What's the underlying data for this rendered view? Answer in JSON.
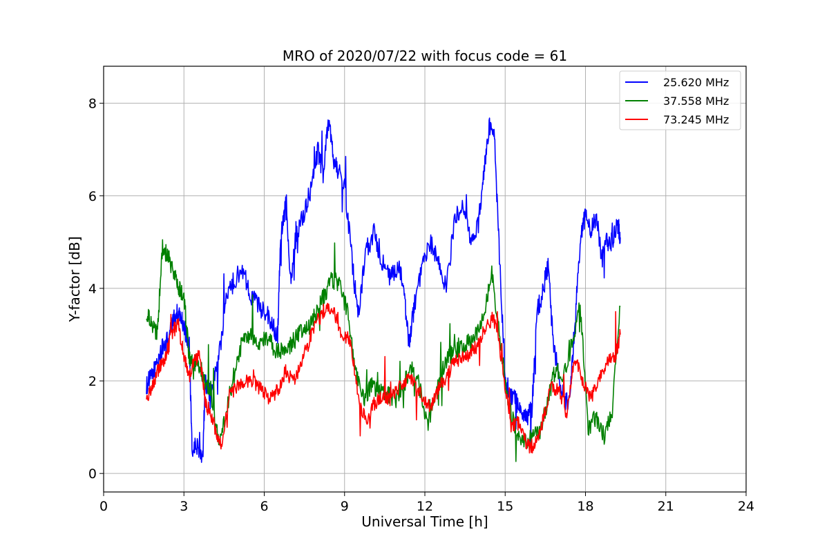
{
  "chart_data": {
    "type": "line",
    "title": "MRO of 2020/07/22 with focus code = 61",
    "xlabel": "Universal Time [h]",
    "ylabel": "Y-factor [dB]",
    "xlim": [
      0,
      24
    ],
    "ylim": [
      -0.4,
      8.8
    ],
    "xticks": [
      0,
      3,
      6,
      9,
      12,
      15,
      18,
      21,
      24
    ],
    "xtick_labels": [
      "0",
      "3",
      "6",
      "9",
      "12",
      "15",
      "18",
      "21",
      "24"
    ],
    "yticks": [
      0,
      2,
      4,
      6,
      8
    ],
    "ytick_labels": [
      "0",
      "2",
      "4",
      "6",
      "8"
    ],
    "grid": true,
    "legend_position": "top-right",
    "series": [
      {
        "name": "25.620 MHz",
        "color": "#0000ff",
        "x": [
          1.6,
          1.8,
          2.0,
          2.2,
          2.4,
          2.6,
          2.8,
          3.0,
          3.2,
          3.3,
          3.5,
          3.7,
          3.8,
          4.0,
          4.3,
          4.6,
          4.9,
          5.2,
          5.5,
          5.8,
          6.1,
          6.3,
          6.5,
          6.6,
          6.8,
          7.0,
          7.2,
          7.5,
          7.8,
          8.0,
          8.2,
          8.4,
          8.6,
          8.8,
          9.0,
          9.3,
          9.5,
          9.8,
          10.1,
          10.4,
          10.7,
          11.0,
          11.2,
          11.4,
          11.6,
          11.9,
          12.2,
          12.5,
          12.8,
          13.1,
          13.4,
          13.7,
          14.0,
          14.2,
          14.4,
          14.6,
          14.8,
          15.0,
          15.2,
          15.4,
          15.6,
          15.8,
          16.0,
          16.2,
          16.4,
          16.6,
          16.8,
          17.0,
          17.2,
          17.4,
          17.6,
          17.8,
          18.0,
          18.2,
          18.4,
          18.6,
          18.8,
          19.0,
          19.2,
          19.3
        ],
        "values": [
          1.9,
          2.1,
          2.4,
          2.7,
          2.9,
          3.3,
          3.5,
          3.2,
          2.8,
          0.5,
          0.6,
          0.4,
          2.0,
          1.7,
          2.5,
          3.8,
          4.2,
          4.4,
          3.9,
          3.6,
          3.5,
          3.2,
          3.0,
          5.0,
          5.8,
          4.2,
          5.2,
          5.6,
          6.3,
          7.0,
          6.5,
          7.6,
          6.8,
          6.5,
          6.2,
          4.5,
          3.4,
          4.8,
          5.2,
          4.6,
          4.2,
          4.5,
          4.0,
          2.8,
          3.6,
          4.4,
          5.0,
          4.6,
          4.0,
          5.4,
          5.9,
          5.0,
          5.4,
          6.5,
          7.5,
          7.2,
          4.5,
          2.0,
          1.7,
          1.6,
          1.3,
          1.2,
          1.4,
          3.5,
          3.9,
          4.5,
          2.8,
          2.1,
          1.6,
          1.5,
          3.2,
          5.0,
          5.6,
          5.2,
          5.6,
          4.6,
          5.0,
          5.0,
          5.4,
          5.1
        ]
      },
      {
        "name": "37.558 MHz",
        "color": "#008000",
        "x": [
          1.6,
          1.8,
          2.0,
          2.2,
          2.4,
          2.6,
          2.8,
          3.0,
          3.2,
          3.4,
          3.6,
          3.8,
          4.0,
          4.3,
          4.6,
          4.9,
          5.2,
          5.5,
          5.8,
          6.1,
          6.4,
          6.7,
          7.0,
          7.3,
          7.6,
          7.9,
          8.2,
          8.5,
          8.8,
          9.1,
          9.4,
          9.7,
          10.0,
          10.3,
          10.6,
          10.9,
          11.2,
          11.5,
          11.8,
          12.1,
          12.4,
          12.7,
          13.0,
          13.3,
          13.6,
          13.9,
          14.2,
          14.5,
          14.8,
          15.1,
          15.4,
          15.7,
          16.0,
          16.3,
          16.6,
          16.9,
          17.2,
          17.5,
          17.8,
          18.1,
          18.4,
          18.7,
          19.0,
          19.3
        ],
        "values": [
          3.5,
          3.2,
          3.0,
          4.9,
          4.7,
          4.4,
          4.0,
          3.8,
          2.5,
          2.4,
          2.3,
          2.0,
          1.8,
          0.6,
          1.4,
          2.2,
          2.9,
          3.0,
          2.8,
          2.9,
          2.7,
          2.6,
          2.8,
          3.0,
          3.1,
          3.4,
          3.8,
          4.2,
          4.1,
          3.5,
          2.2,
          1.6,
          1.9,
          1.8,
          1.7,
          1.6,
          1.9,
          2.3,
          1.9,
          1.0,
          1.7,
          2.3,
          2.6,
          2.7,
          2.8,
          3.0,
          3.4,
          4.3,
          3.0,
          1.5,
          1.0,
          0.7,
          0.8,
          0.9,
          1.6,
          2.3,
          2.1,
          2.8,
          3.6,
          1.0,
          1.2,
          0.8,
          1.4,
          3.6
        ]
      },
      {
        "name": "73.245 MHz",
        "color": "#ff0000",
        "x": [
          1.6,
          1.8,
          2.0,
          2.2,
          2.4,
          2.6,
          2.8,
          3.0,
          3.2,
          3.4,
          3.6,
          3.8,
          4.0,
          4.2,
          4.4,
          4.7,
          5.0,
          5.3,
          5.6,
          5.9,
          6.2,
          6.5,
          6.8,
          7.1,
          7.4,
          7.7,
          8.0,
          8.3,
          8.6,
          8.9,
          9.2,
          9.5,
          9.8,
          10.1,
          10.4,
          10.7,
          11.0,
          11.3,
          11.6,
          11.9,
          12.2,
          12.5,
          12.8,
          13.1,
          13.4,
          13.7,
          14.0,
          14.3,
          14.6,
          14.9,
          15.2,
          15.5,
          15.8,
          16.1,
          16.4,
          16.7,
          17.0,
          17.3,
          17.6,
          17.9,
          18.2,
          18.5,
          18.8,
          19.1,
          19.3
        ],
        "values": [
          1.7,
          1.8,
          2.2,
          2.4,
          2.7,
          3.1,
          3.2,
          2.5,
          2.1,
          2.5,
          2.5,
          1.5,
          1.3,
          0.9,
          0.6,
          1.7,
          1.9,
          2.0,
          2.0,
          1.8,
          1.6,
          1.8,
          2.2,
          2.0,
          2.4,
          2.9,
          3.3,
          3.6,
          3.5,
          3.0,
          2.9,
          1.7,
          1.1,
          1.5,
          1.7,
          1.6,
          1.8,
          2.0,
          2.0,
          1.7,
          1.4,
          1.8,
          2.1,
          2.4,
          2.5,
          2.6,
          2.8,
          3.2,
          3.4,
          2.3,
          1.0,
          1.1,
          0.6,
          0.6,
          1.1,
          1.9,
          1.8,
          1.3,
          2.5,
          2.0,
          1.6,
          2.0,
          2.4,
          2.5,
          3.0
        ]
      }
    ]
  }
}
